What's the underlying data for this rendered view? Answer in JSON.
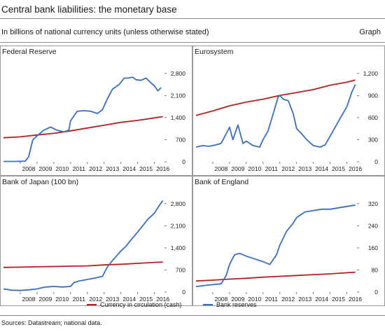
{
  "title": "Central bank liabilities: the monetary base",
  "subtitle": "In billions of national currency units (unless otherwise stated)",
  "graph_label": "Graph",
  "sources": "Sources: Datastream; national data.",
  "colors": {
    "currency": "#b22222",
    "reserves": "#3a6fb8",
    "frame": "#999999"
  },
  "chart_data": [
    {
      "type": "line",
      "title": "Federal Reserve",
      "x_ticks": [
        "2008",
        "2009",
        "2010",
        "2011",
        "2012",
        "2013",
        "2014",
        "2015",
        "2016"
      ],
      "xlim": [
        2007.0,
        2016.6
      ],
      "y_ticks": [
        0,
        700,
        1400,
        2100,
        2800
      ],
      "y_tick_labels": [
        "0",
        "700",
        "1,400",
        "2,100",
        "2,800"
      ],
      "ylim": [
        0,
        3150
      ],
      "series": [
        {
          "name": "Currency in circulation (cash)",
          "x": [
            2007.0,
            2008.0,
            2009.0,
            2010.0,
            2011.0,
            2012.0,
            2013.0,
            2014.0,
            2015.0,
            2016.0,
            2016.5
          ],
          "y": [
            760,
            790,
            850,
            900,
            980,
            1070,
            1160,
            1250,
            1310,
            1390,
            1430
          ]
        },
        {
          "name": "Bank reserves",
          "x": [
            2007.0,
            2007.7,
            2008.3,
            2008.5,
            2008.75,
            2009.0,
            2009.4,
            2009.8,
            2010.0,
            2010.2,
            2010.6,
            2010.9,
            2011.0,
            2011.4,
            2011.8,
            2012.2,
            2012.6,
            2012.9,
            2013.2,
            2013.5,
            2013.9,
            2014.2,
            2014.4,
            2014.7,
            2014.9,
            2015.2,
            2015.5,
            2015.8,
            2016.0,
            2016.2,
            2016.4
          ],
          "y": [
            10,
            10,
            20,
            160,
            700,
            820,
            1000,
            1100,
            1050,
            1000,
            950,
            1000,
            1300,
            1600,
            1620,
            1600,
            1530,
            1650,
            2000,
            2300,
            2450,
            2650,
            2650,
            2680,
            2600,
            2580,
            2650,
            2500,
            2400,
            2250,
            2350
          ]
        }
      ]
    },
    {
      "type": "line",
      "title": "Eurosystem",
      "x_ticks": [
        "2008",
        "2009",
        "2010",
        "2011",
        "2012",
        "2013",
        "2014",
        "2015",
        "2016"
      ],
      "xlim": [
        2007.0,
        2016.6
      ],
      "y_ticks": [
        0,
        300,
        600,
        900,
        1200
      ],
      "y_tick_labels": [
        "0",
        "300",
        "600",
        "900",
        "1,200"
      ],
      "ylim": [
        0,
        1350
      ],
      "series": [
        {
          "name": "Currency in circulation (cash)",
          "x": [
            2007.0,
            2008.0,
            2009.0,
            2010.0,
            2011.0,
            2012.0,
            2013.0,
            2014.0,
            2015.0,
            2016.0,
            2016.5
          ],
          "y": [
            630,
            690,
            760,
            810,
            850,
            900,
            940,
            980,
            1040,
            1080,
            1110
          ]
        },
        {
          "name": "Bank reserves",
          "x": [
            2007.0,
            2007.4,
            2007.8,
            2008.2,
            2008.5,
            2008.8,
            2009.0,
            2009.2,
            2009.5,
            2009.8,
            2010.0,
            2010.4,
            2010.8,
            2011.0,
            2011.3,
            2011.6,
            2011.9,
            2012.0,
            2012.2,
            2012.5,
            2012.8,
            2013.0,
            2013.3,
            2013.6,
            2014.0,
            2014.4,
            2014.7,
            2015.0,
            2015.5,
            2016.0,
            2016.3,
            2016.5
          ],
          "y": [
            200,
            220,
            210,
            230,
            250,
            380,
            470,
            300,
            500,
            250,
            280,
            220,
            200,
            300,
            420,
            650,
            880,
            900,
            850,
            830,
            650,
            450,
            380,
            300,
            220,
            200,
            230,
            350,
            550,
            750,
            950,
            1050
          ]
        }
      ]
    },
    {
      "type": "line",
      "title": "Bank of Japan (100 bn)",
      "x_ticks": [
        "2008",
        "2009",
        "2010",
        "2011",
        "2012",
        "2013",
        "2014",
        "2015",
        "2016"
      ],
      "xlim": [
        2007.0,
        2016.6
      ],
      "y_ticks": [
        0,
        700,
        1400,
        2100,
        2800
      ],
      "y_tick_labels": [
        "0",
        "700",
        "1,400",
        "2,100",
        "2,800"
      ],
      "ylim": [
        0,
        3150
      ],
      "series": [
        {
          "name": "Currency in circulation (cash)",
          "x": [
            2007.0,
            2008.0,
            2009.0,
            2010.0,
            2011.0,
            2012.0,
            2013.0,
            2014.0,
            2015.0,
            2016.0,
            2016.5
          ],
          "y": [
            780,
            790,
            800,
            810,
            820,
            830,
            860,
            880,
            910,
            940,
            950
          ]
        },
        {
          "name": "Bank reserves",
          "x": [
            2007.0,
            2007.5,
            2008.0,
            2008.5,
            2009.0,
            2009.5,
            2010.0,
            2010.5,
            2011.0,
            2011.2,
            2011.5,
            2012.0,
            2012.5,
            2012.9,
            2013.2,
            2013.5,
            2013.8,
            2014.0,
            2014.3,
            2014.6,
            2015.0,
            2015.3,
            2015.6,
            2016.0,
            2016.3,
            2016.5
          ],
          "y": [
            100,
            60,
            50,
            70,
            100,
            160,
            180,
            160,
            180,
            300,
            350,
            400,
            450,
            500,
            800,
            1000,
            1180,
            1300,
            1450,
            1650,
            1900,
            2100,
            2300,
            2500,
            2750,
            2900
          ]
        }
      ]
    },
    {
      "type": "line",
      "title": "Bank of England",
      "x_ticks": [
        "2008",
        "2009",
        "2010",
        "2011",
        "2012",
        "2013",
        "2014",
        "2015",
        "2016"
      ],
      "xlim": [
        2007.0,
        2016.6
      ],
      "y_ticks": [
        0,
        80,
        160,
        240,
        320
      ],
      "y_tick_labels": [
        "0",
        "80",
        "160",
        "240",
        "320"
      ],
      "ylim": [
        0,
        360
      ],
      "series": [
        {
          "name": "Currency in circulation (cash)",
          "x": [
            2007.0,
            2008.0,
            2009.0,
            2010.0,
            2011.0,
            2012.0,
            2013.0,
            2014.0,
            2015.0,
            2016.0,
            2016.5
          ],
          "y": [
            40,
            43,
            47,
            50,
            54,
            57,
            60,
            63,
            66,
            70,
            72
          ]
        },
        {
          "name": "Bank reserves",
          "x": [
            2007.0,
            2007.7,
            2008.5,
            2008.8,
            2009.0,
            2009.3,
            2009.6,
            2010.0,
            2010.5,
            2011.0,
            2011.4,
            2011.8,
            2012.0,
            2012.4,
            2012.8,
            2013.0,
            2013.5,
            2014.0,
            2014.5,
            2015.0,
            2015.5,
            2016.0,
            2016.5
          ],
          "y": [
            20,
            25,
            30,
            60,
            100,
            135,
            140,
            130,
            120,
            110,
            100,
            135,
            170,
            220,
            250,
            270,
            290,
            295,
            300,
            300,
            305,
            310,
            315
          ]
        }
      ]
    }
  ],
  "legend": {
    "currency_label": "Currency in circulation (cash)",
    "reserves_label": "Bank reserves"
  }
}
